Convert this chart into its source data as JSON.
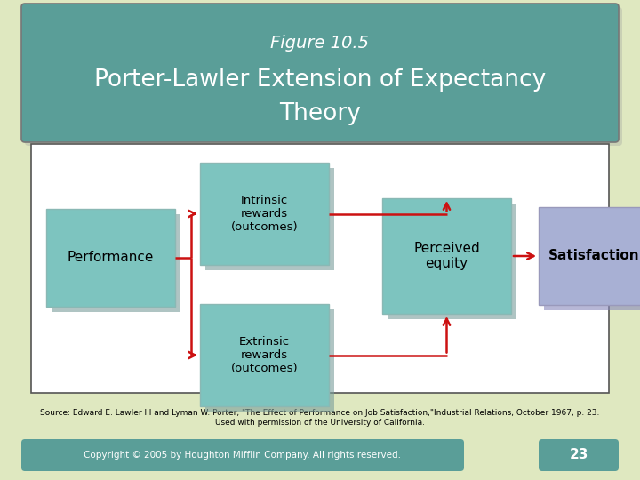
{
  "bg_color": "#dfe8c0",
  "title_bg_color": "#5a9e98",
  "title_line1": "Figure 10.5",
  "title_line2": "Porter-Lawler Extension of Expectancy",
  "title_line3": "Theory",
  "title_text_color": "#ffffff",
  "diagram_bg": "#ffffff",
  "box_teal_color": "#7dc4bf",
  "box_blue_color": "#a8b0d4",
  "arrow_color": "#cc1111",
  "source_text": "Source: Edward E. Lawler III and Lyman W. Porter, \"The Effect of Performance on Job Satisfaction,\"Industrial Relations, October 1967, p. 23.\nUsed with permission of the University of California.",
  "footer_text": "Copyright © 2005 by Houghton Mifflin Company. All rights reserved.",
  "footer_num": "23",
  "footer_bg": "#5a9e98",
  "footer_text_color": "#ffffff"
}
